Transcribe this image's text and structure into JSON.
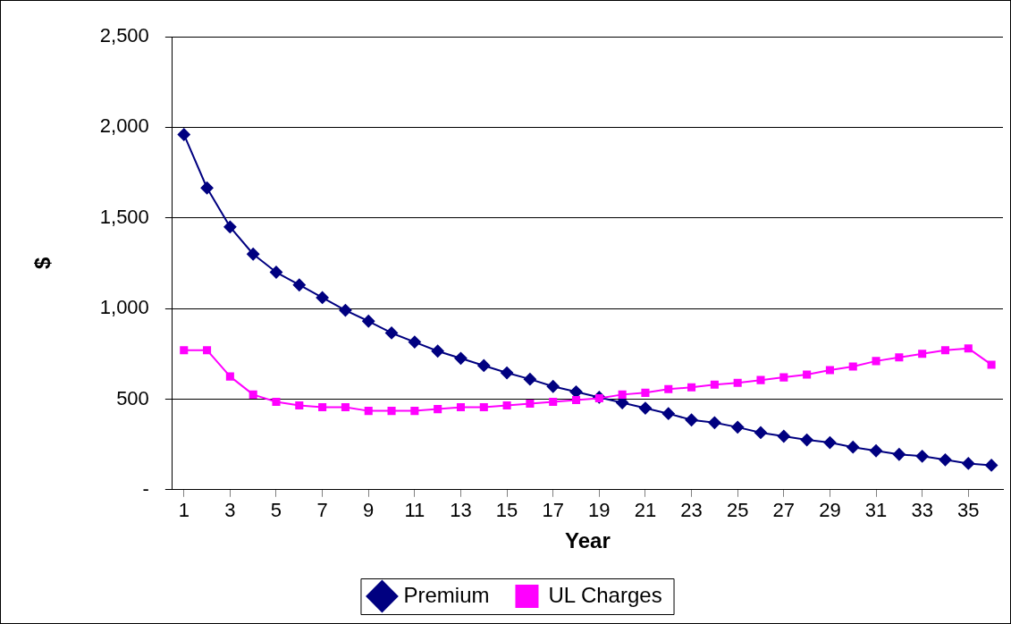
{
  "chart_data": {
    "type": "line",
    "xlabel": "Year",
    "ylabel": "$",
    "x": [
      1,
      2,
      3,
      4,
      5,
      6,
      7,
      8,
      9,
      10,
      11,
      12,
      13,
      14,
      15,
      16,
      17,
      18,
      19,
      20,
      21,
      22,
      23,
      24,
      25,
      26,
      27,
      28,
      29,
      30,
      31,
      32,
      33,
      34,
      35,
      36
    ],
    "xlim": [
      0.5,
      36.5
    ],
    "xticks": [
      1,
      3,
      5,
      7,
      9,
      11,
      13,
      15,
      17,
      19,
      21,
      23,
      25,
      27,
      29,
      31,
      33,
      35
    ],
    "series": [
      {
        "name": "Premium",
        "color": "#000080",
        "marker": "diamond",
        "values": [
          1960,
          1665,
          1450,
          1300,
          1200,
          1130,
          1060,
          990,
          930,
          865,
          815,
          765,
          725,
          685,
          645,
          610,
          570,
          540,
          510,
          480,
          450,
          420,
          385,
          370,
          345,
          315,
          295,
          275,
          260,
          235,
          215,
          195,
          185,
          165,
          145,
          135
        ]
      },
      {
        "name": "UL Charges",
        "color": "#ff00ff",
        "marker": "square",
        "values": [
          770,
          770,
          625,
          525,
          485,
          465,
          455,
          455,
          435,
          435,
          435,
          445,
          455,
          455,
          465,
          475,
          485,
          495,
          505,
          525,
          535,
          555,
          565,
          580,
          590,
          605,
          620,
          635,
          660,
          680,
          710,
          730,
          750,
          770,
          780,
          690
        ]
      }
    ],
    "ylim": [
      0,
      2500
    ],
    "yticks": [
      {
        "value": 0,
        "label": "-"
      },
      {
        "value": 500,
        "label": "500"
      },
      {
        "value": 1000,
        "label": "1,000"
      },
      {
        "value": 1500,
        "label": "1,500"
      },
      {
        "value": 2000,
        "label": "2,000"
      },
      {
        "value": 2500,
        "label": "2,500"
      }
    ],
    "grid": "y",
    "legend": "bottom"
  }
}
